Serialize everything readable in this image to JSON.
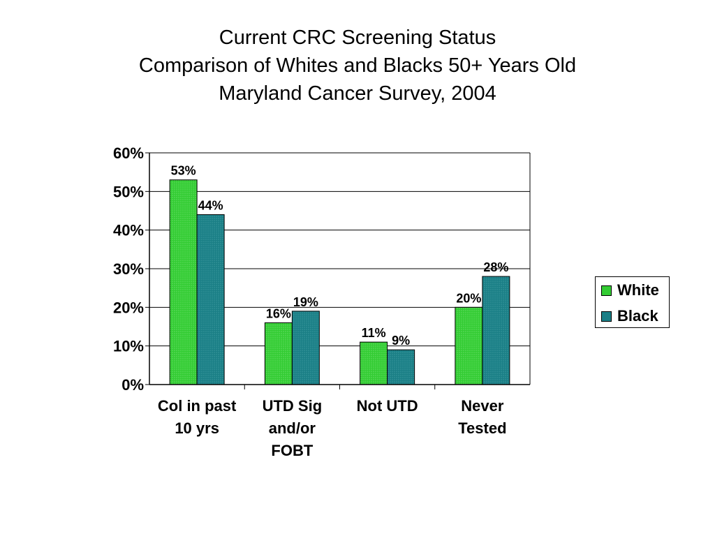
{
  "chart_data": {
    "type": "bar",
    "title_lines": [
      "Current CRC Screening Status",
      "Comparison of Whites and Blacks 50+ Years Old",
      "Maryland Cancer Survey, 2004"
    ],
    "categories": [
      [
        "Col in past",
        "10 yrs"
      ],
      [
        "UTD Sig",
        "and/or",
        "FOBT"
      ],
      [
        "Not UTD"
      ],
      [
        "Never",
        "Tested"
      ]
    ],
    "series": [
      {
        "name": "White",
        "color": "#33cc33",
        "values": [
          53,
          16,
          11,
          20
        ],
        "labels": [
          "53%",
          "16%",
          "11%",
          "20%"
        ]
      },
      {
        "name": "Black",
        "color": "#1a7f86",
        "values": [
          44,
          19,
          9,
          28
        ],
        "labels": [
          "44%",
          "19%",
          "9%",
          "28%"
        ]
      }
    ],
    "y_ticks": [
      {
        "value": 0,
        "label": "0%"
      },
      {
        "value": 10,
        "label": "10%"
      },
      {
        "value": 20,
        "label": "20%"
      },
      {
        "value": 30,
        "label": "30%"
      },
      {
        "value": 40,
        "label": "40%"
      },
      {
        "value": 50,
        "label": "50%"
      },
      {
        "value": 60,
        "label": "60%"
      }
    ],
    "ylim": [
      0,
      60
    ],
    "grid": true,
    "legend_position": "right"
  }
}
